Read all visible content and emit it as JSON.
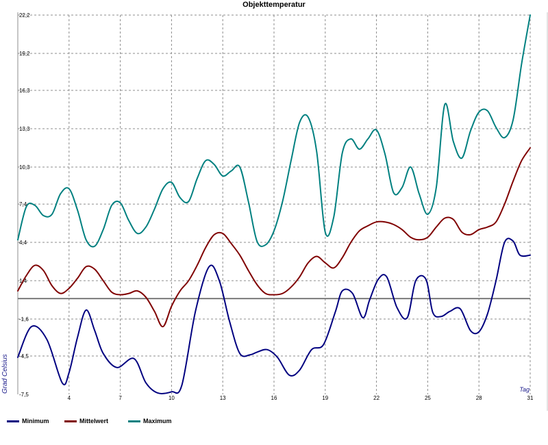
{
  "chart_data": {
    "type": "line",
    "title": "Objekttemperatur",
    "xlabel": "Tag",
    "ylabel": "Grad Celsius",
    "xlim": [
      1,
      31
    ],
    "ylim": [
      -7.5,
      22.2
    ],
    "x_ticks": [
      1,
      4,
      7,
      10,
      13,
      16,
      19,
      22,
      25,
      28,
      31
    ],
    "x_tick_labels": [
      "",
      "4",
      "7",
      "10",
      "13",
      "16",
      "19",
      "22",
      "25",
      "28",
      "31"
    ],
    "y_ticks": [
      -7.5,
      -4.5,
      -1.6,
      1.4,
      4.4,
      7.4,
      10.3,
      13.3,
      16.3,
      19.2,
      22.2
    ],
    "y_tick_labels": [
      "-7,5",
      "-4,5",
      "-1,6",
      "1,4",
      "4,4",
      "7,4",
      "10,3",
      "13,3",
      "16,3",
      "19,2",
      "22,2"
    ],
    "baseline": 0,
    "grid": true,
    "legend_position": "bottom-left",
    "series": [
      {
        "name": "Minimum",
        "color": "#000080",
        "x": [
          1,
          1.8,
          2.7,
          3.6,
          4.0,
          4.5,
          5.0,
          5.5,
          6.0,
          6.8,
          7.8,
          8.5,
          9.2,
          10.0,
          10.6,
          11.4,
          12.2,
          12.8,
          13.4,
          14.0,
          14.6,
          15.0,
          15.6,
          16.2,
          16.9,
          17.5,
          18.2,
          18.9,
          19.6,
          20.0,
          20.6,
          21.2,
          21.6,
          22.1,
          22.6,
          23.2,
          23.8,
          24.3,
          24.9,
          25.3,
          25.8,
          26.3,
          26.9,
          27.5,
          28.0,
          28.5,
          29.0,
          29.5,
          30.0,
          30.4,
          31.0
        ],
        "values": [
          -4.6,
          -2.2,
          -3.2,
          -6.6,
          -5.8,
          -3.0,
          -0.9,
          -2.5,
          -4.3,
          -5.4,
          -4.7,
          -6.6,
          -7.4,
          -7.3,
          -6.8,
          -1.0,
          2.5,
          1.4,
          -1.8,
          -4.3,
          -4.4,
          -4.2,
          -4.0,
          -4.6,
          -6.0,
          -5.6,
          -4.0,
          -3.6,
          -1.0,
          0.6,
          0.4,
          -1.5,
          -0.1,
          1.5,
          1.7,
          -0.7,
          -1.5,
          1.4,
          1.5,
          -1.1,
          -1.4,
          -1.0,
          -0.8,
          -2.5,
          -2.6,
          -1.2,
          1.4,
          4.4,
          4.5,
          3.4,
          3.4
        ]
      },
      {
        "name": "Mittelwert",
        "color": "#800000",
        "x": [
          1,
          1.5,
          2.0,
          2.5,
          3.0,
          3.5,
          4.0,
          4.5,
          5.0,
          5.5,
          6.0,
          6.5,
          7.0,
          7.5,
          8.0,
          8.5,
          9.0,
          9.5,
          10.0,
          10.5,
          11.0,
          11.5,
          12.0,
          12.5,
          13.0,
          13.5,
          14.0,
          14.5,
          15.0,
          15.5,
          16.0,
          16.5,
          17.0,
          17.5,
          18.0,
          18.5,
          19.0,
          19.5,
          20.0,
          20.5,
          21.0,
          21.5,
          22.0,
          22.5,
          23.0,
          23.5,
          24.0,
          24.5,
          25.0,
          25.5,
          26.0,
          26.5,
          27.0,
          27.5,
          28.0,
          28.5,
          29.0,
          29.5,
          30.0,
          30.5,
          31.0
        ],
        "values": [
          0.6,
          1.8,
          2.6,
          2.2,
          1.0,
          0.4,
          0.8,
          1.6,
          2.5,
          2.3,
          1.4,
          0.5,
          0.3,
          0.4,
          0.6,
          0.1,
          -1.0,
          -2.2,
          -0.6,
          0.6,
          1.4,
          2.6,
          4.0,
          5.0,
          5.1,
          4.3,
          3.4,
          2.2,
          1.1,
          0.4,
          0.3,
          0.4,
          0.9,
          1.7,
          2.8,
          3.3,
          2.8,
          2.4,
          3.2,
          4.4,
          5.3,
          5.7,
          6.0,
          6.0,
          5.8,
          5.4,
          4.8,
          4.6,
          4.8,
          5.6,
          6.3,
          6.2,
          5.2,
          5.0,
          5.4,
          5.6,
          6.0,
          7.4,
          9.2,
          10.8,
          11.8
        ]
      },
      {
        "name": "Maximum",
        "color": "#008080",
        "x": [
          1,
          1.5,
          2.0,
          2.5,
          3.0,
          3.5,
          4.0,
          4.5,
          5.0,
          5.5,
          6.0,
          6.5,
          7.0,
          7.5,
          8.0,
          8.5,
          9.0,
          9.5,
          10.0,
          10.5,
          11.0,
          11.5,
          12.0,
          12.5,
          13.0,
          13.5,
          14.0,
          14.5,
          15.0,
          15.5,
          16.0,
          16.5,
          17.0,
          17.5,
          18.0,
          18.5,
          19.0,
          19.5,
          20.0,
          20.5,
          21.0,
          21.5,
          22.0,
          22.5,
          23.0,
          23.5,
          24.0,
          24.5,
          25.0,
          25.5,
          26.0,
          26.5,
          27.0,
          27.5,
          28.0,
          28.5,
          29.0,
          29.5,
          30.0,
          30.5,
          31.0
        ],
        "values": [
          4.6,
          7.2,
          7.3,
          6.5,
          6.6,
          8.2,
          8.6,
          6.9,
          4.6,
          4.1,
          5.4,
          7.3,
          7.5,
          6.1,
          5.1,
          5.6,
          7.0,
          8.6,
          9.1,
          7.9,
          7.6,
          9.4,
          10.8,
          10.5,
          9.6,
          10.0,
          10.3,
          7.6,
          4.5,
          4.2,
          5.3,
          7.6,
          10.8,
          13.8,
          14.2,
          11.5,
          5.2,
          6.4,
          11.4,
          12.5,
          11.7,
          12.5,
          13.2,
          11.3,
          8.3,
          8.7,
          10.3,
          8.2,
          6.6,
          8.7,
          15.2,
          12.3,
          11.0,
          13.1,
          14.6,
          14.7,
          13.4,
          12.6,
          14.0,
          18.4,
          22.2
        ]
      }
    ]
  }
}
